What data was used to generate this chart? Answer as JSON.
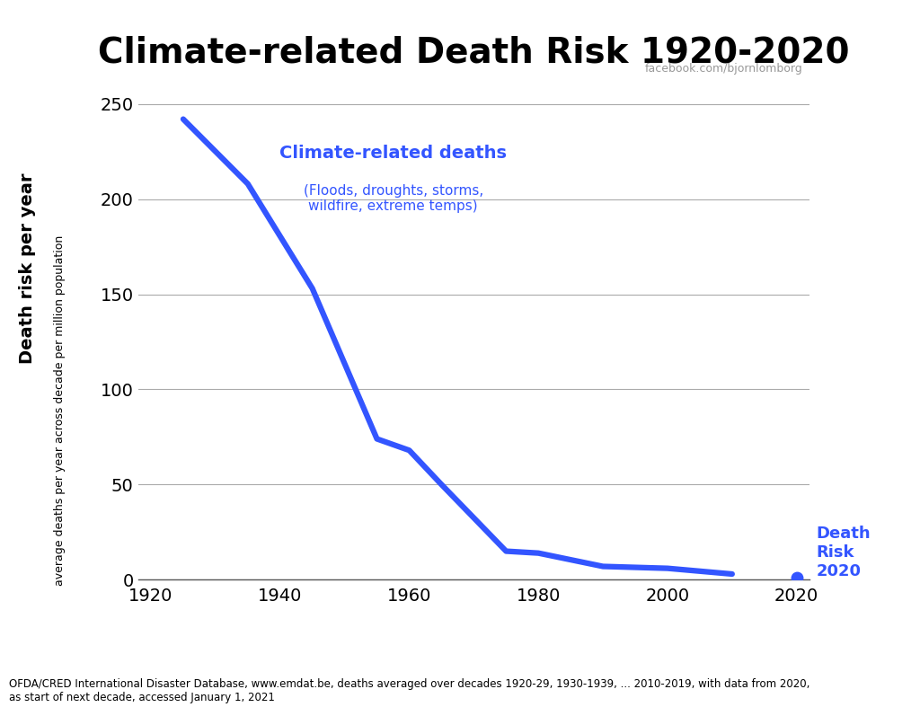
{
  "title": "Climate-related Death Risk 1920-2020",
  "title_fontsize": 28,
  "title_fontweight": "bold",
  "watermark": "facebook.com/bjornlomborg",
  "ylabel_main": "Death risk per year",
  "ylabel_sub": "average deaths per year across decade per million population",
  "source_text": "OFDA/CRED International Disaster Database, www.emdat.be, deaths averaged over decades 1920-29, 1930-1939, ... 2010-2019, with data from 2020,\nas start of next decade, accessed January 1, 2021",
  "annotation_title": "Climate-related deaths",
  "annotation_sub": "(Floods, droughts, storms,\nwildfire, extreme temps)",
  "annotation_label": "Death\nRisk\n2020",
  "line_color": "#3355ff",
  "line_width": 4.5,
  "marker_color": "#3355ff",
  "x_data": [
    1925,
    1935,
    1945,
    1955,
    1960,
    1965,
    1975,
    1980,
    1990,
    2000,
    2010,
    2020
  ],
  "y_data": [
    242,
    208,
    153,
    74,
    68,
    50,
    15,
    14,
    7,
    6,
    3,
    1
  ],
  "xlim": [
    1918,
    2022
  ],
  "ylim": [
    0,
    260
  ],
  "yticks": [
    0,
    50,
    100,
    150,
    200,
    250
  ],
  "xticks": [
    1920,
    1940,
    1960,
    1980,
    2000,
    2020
  ],
  "bg_color": "#ffffff",
  "grid_color": "#aaaaaa",
  "text_color_blue": "#3355ff",
  "text_color_black": "#000000",
  "watermark_color": "#999999"
}
